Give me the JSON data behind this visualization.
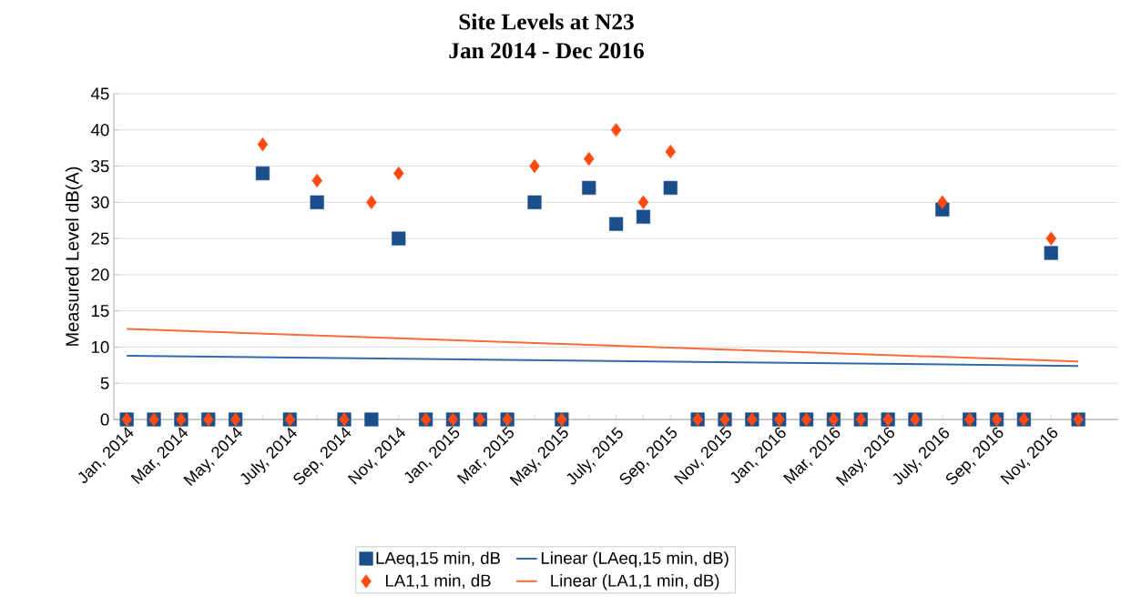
{
  "chart_data": {
    "type": "scatter",
    "title": "Site Levels at N23",
    "subtitle": "Jan 2014 - Dec 2016",
    "ylabel": "Measured Level dB(A)",
    "x": [
      "2014-01",
      "2014-02",
      "2014-03",
      "2014-04",
      "2014-05",
      "2014-06",
      "2014-07",
      "2014-08",
      "2014-09",
      "2014-10",
      "2014-11",
      "2014-12",
      "2015-01",
      "2015-02",
      "2015-03",
      "2015-04",
      "2015-05",
      "2015-06",
      "2015-07",
      "2015-08",
      "2015-09",
      "2015-10",
      "2015-11",
      "2015-12",
      "2016-01",
      "2016-02",
      "2016-03",
      "2016-04",
      "2016-05",
      "2016-06",
      "2016-07",
      "2016-08",
      "2016-09",
      "2016-10",
      "2016-11",
      "2016-12"
    ],
    "series": [
      {
        "name": "LAeq,15 min, dB",
        "color": "#1a4f8b",
        "marker": "square",
        "values": [
          0,
          0,
          0,
          0,
          0,
          34,
          0,
          30,
          0,
          0,
          25,
          0,
          0,
          0,
          0,
          30,
          0,
          32,
          27,
          28,
          32,
          0,
          0,
          0,
          0,
          0,
          0,
          0,
          0,
          0,
          29,
          0,
          0,
          0,
          23,
          0
        ]
      },
      {
        "name": "Linear (LAeq,15 min, dB)",
        "type": "line",
        "color": "#2f68ad",
        "x": [
          "2014-01",
          "2016-12"
        ],
        "values": [
          8.8,
          7.4
        ]
      },
      {
        "name": "LA1,1 min, dB",
        "color": "#ff4a12",
        "marker": "diamond",
        "values": [
          0,
          0,
          0,
          0,
          0,
          38,
          0,
          33,
          0,
          30,
          34,
          0,
          0,
          0,
          0,
          35,
          0,
          36,
          40,
          30,
          37,
          0,
          0,
          0,
          0,
          0,
          0,
          0,
          0,
          0,
          30,
          0,
          0,
          0,
          25,
          0
        ]
      },
      {
        "name": "Linear (LA1,1 min, dB)",
        "type": "line",
        "color": "#ff6a3d",
        "x": [
          "2014-01",
          "2016-12"
        ],
        "values": [
          12.5,
          8.0
        ]
      }
    ],
    "xlim": [
      "2013-12-17",
      "2017-01-15"
    ],
    "xticks": [
      {
        "value": "2014-01",
        "label": "Jan, 2014"
      },
      {
        "value": "2014-02",
        "label": null
      },
      {
        "value": "2014-03",
        "label": "Mar, 2014"
      },
      {
        "value": "2014-04",
        "label": null
      },
      {
        "value": "2014-05",
        "label": "May, 2014"
      },
      {
        "value": "2014-06",
        "label": null
      },
      {
        "value": "2014-07",
        "label": "July, 2014"
      },
      {
        "value": "2014-08",
        "label": null
      },
      {
        "value": "2014-09",
        "label": "Sep, 2014"
      },
      {
        "value": "2014-10",
        "label": null
      },
      {
        "value": "2014-11",
        "label": "Nov, 2014"
      },
      {
        "value": "2014-12",
        "label": null
      },
      {
        "value": "2015-01",
        "label": "Jan, 2015"
      },
      {
        "value": "2015-02",
        "label": null
      },
      {
        "value": "2015-03",
        "label": "Mar, 2015"
      },
      {
        "value": "2015-04",
        "label": null
      },
      {
        "value": "2015-05",
        "label": "May, 2015"
      },
      {
        "value": "2015-06",
        "label": null
      },
      {
        "value": "2015-07",
        "label": "July, 2015"
      },
      {
        "value": "2015-08",
        "label": null
      },
      {
        "value": "2015-09",
        "label": "Sep, 2015"
      },
      {
        "value": "2015-10",
        "label": null
      },
      {
        "value": "2015-11",
        "label": "Nov, 2015"
      },
      {
        "value": "2015-12",
        "label": null
      },
      {
        "value": "2016-01",
        "label": "Jan, 2016"
      },
      {
        "value": "2016-02",
        "label": null
      },
      {
        "value": "2016-03",
        "label": "Mar, 2016"
      },
      {
        "value": "2016-04",
        "label": null
      },
      {
        "value": "2016-05",
        "label": "May, 2016"
      },
      {
        "value": "2016-06",
        "label": null
      },
      {
        "value": "2016-07",
        "label": "July, 2016"
      },
      {
        "value": "2016-08",
        "label": null
      },
      {
        "value": "2016-09",
        "label": "Sep, 2016"
      },
      {
        "value": "2016-10",
        "label": null
      },
      {
        "value": "2016-11",
        "label": "Nov, 2016"
      },
      {
        "value": "2016-12",
        "label": null
      }
    ],
    "ylim": [
      0,
      45
    ],
    "yticks": [
      0,
      5,
      10,
      15,
      20,
      25,
      30,
      35,
      40,
      45
    ],
    "grid": "y",
    "legend": "bottom"
  }
}
